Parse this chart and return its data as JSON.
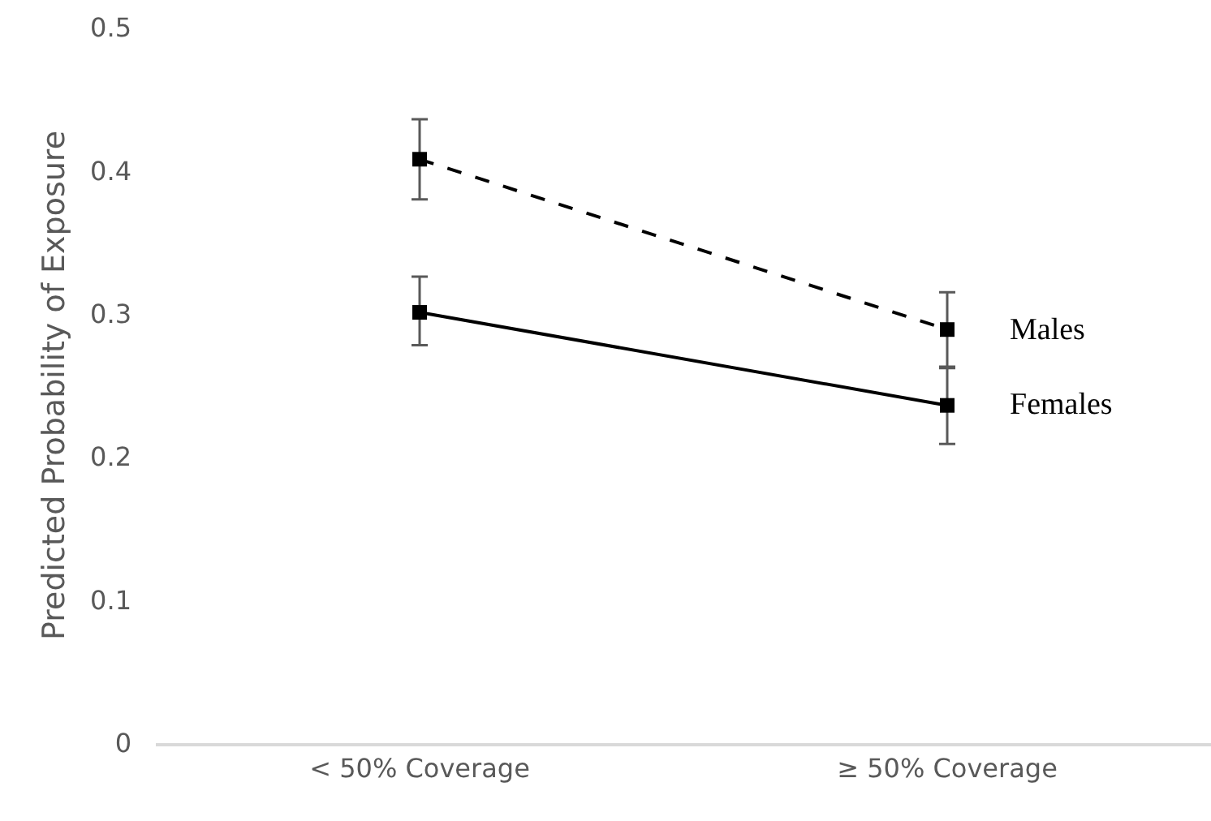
{
  "chart_data": {
    "type": "line",
    "ylabel": "Predicted Probability of Exposure",
    "categories": [
      "< 50% Coverage",
      "≥ 50% Coverage"
    ],
    "series": [
      {
        "name": "Males",
        "color": "#000000",
        "values": [
          0.408,
          0.289
        ],
        "errors": [
          [
            0.38,
            0.436
          ],
          [
            0.262,
            0.315
          ]
        ],
        "line_style": "dashed"
      },
      {
        "name": "Females",
        "color": "#000000",
        "values": [
          0.301,
          0.236
        ],
        "errors": [
          [
            0.278,
            0.326
          ],
          [
            0.209,
            0.263
          ]
        ],
        "line_style": "solid"
      }
    ],
    "ylim": [
      0,
      0.5
    ],
    "yticks": [
      0,
      0.1,
      0.2,
      0.3,
      0.4,
      0.5
    ],
    "grid": false,
    "legend": false,
    "marker": "square"
  }
}
